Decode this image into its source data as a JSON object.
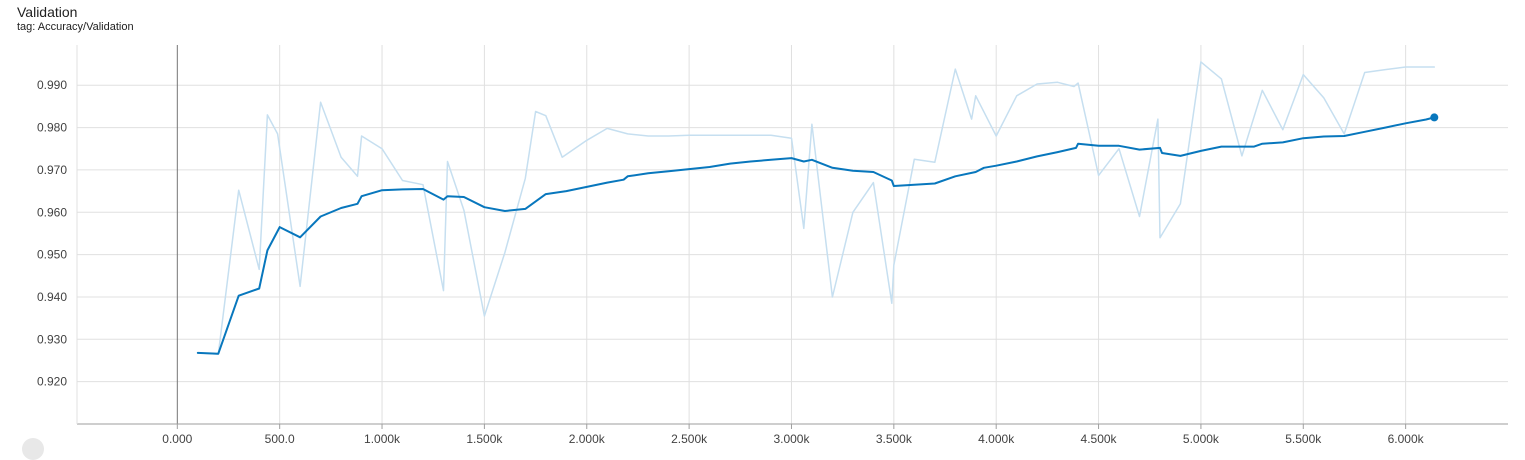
{
  "card": {
    "title": "Validation",
    "tag_line": "tag: Accuracy/Validation"
  },
  "colors": {
    "smoothed": "#0877bd",
    "raw": "#c6dff0",
    "grid": "#e0e0e0",
    "axis": "#9e9e9e",
    "zero_line": "#757575"
  },
  "chart_data": {
    "type": "line",
    "title": "",
    "xlabel": "",
    "ylabel": "",
    "xlim": [
      -490,
      6500
    ],
    "ylim": [
      0.91,
      0.9995
    ],
    "x_ticks": [
      0,
      500,
      1000,
      1500,
      2000,
      2500,
      3000,
      3500,
      4000,
      4500,
      5000,
      5500,
      6000
    ],
    "x_tick_labels": [
      "0.000",
      "500.0",
      "1.000k",
      "1.500k",
      "2.000k",
      "2.500k",
      "3.000k",
      "3.500k",
      "4.000k",
      "4.500k",
      "5.000k",
      "5.500k",
      "6.000k"
    ],
    "y_ticks": [
      0.92,
      0.93,
      0.94,
      0.95,
      0.96,
      0.97,
      0.98,
      0.99
    ],
    "y_tick_labels": [
      "0.920",
      "0.930",
      "0.940",
      "0.950",
      "0.960",
      "0.970",
      "0.980",
      "0.990"
    ],
    "grid": true,
    "legend": "none",
    "series": [
      {
        "role": "raw",
        "x": [
          100,
          200,
          300,
          400,
          440,
          490,
          600,
          700,
          800,
          880,
          900,
          1000,
          1100,
          1200,
          1300,
          1320,
          1400,
          1500,
          1600,
          1700,
          1750,
          1800,
          1880,
          2000,
          2100,
          2200,
          2300,
          2400,
          2500,
          2600,
          2700,
          2800,
          2900,
          3000,
          3060,
          3100,
          3200,
          3300,
          3400,
          3490,
          3500,
          3600,
          3700,
          3800,
          3880,
          3900,
          4000,
          4100,
          4200,
          4300,
          4380,
          4400,
          4500,
          4600,
          4700,
          4790,
          4800,
          4900,
          5000,
          5100,
          5200,
          5300,
          5400,
          5500,
          5600,
          5700,
          5800,
          5900,
          6000,
          6100,
          6140
        ],
        "y": [
          0.9268,
          0.9265,
          0.9652,
          0.9465,
          0.983,
          0.9785,
          0.9425,
          0.986,
          0.973,
          0.9685,
          0.978,
          0.975,
          0.9675,
          0.9665,
          0.9415,
          0.972,
          0.9605,
          0.9355,
          0.9505,
          0.968,
          0.9838,
          0.9828,
          0.973,
          0.977,
          0.9798,
          0.9785,
          0.978,
          0.978,
          0.9782,
          0.9782,
          0.9782,
          0.9782,
          0.9782,
          0.9775,
          0.9562,
          0.9808,
          0.94,
          0.96,
          0.967,
          0.9385,
          0.9475,
          0.9725,
          0.9718,
          0.9938,
          0.982,
          0.9875,
          0.978,
          0.9875,
          0.9903,
          0.9907,
          0.9897,
          0.9905,
          0.9687,
          0.975,
          0.959,
          0.982,
          0.954,
          0.962,
          0.9955,
          0.9915,
          0.9733,
          0.9888,
          0.9795,
          0.9925,
          0.987,
          0.9785,
          0.993,
          0.9937,
          0.9943,
          0.9943,
          0.9943
        ]
      },
      {
        "role": "smoothed",
        "x": [
          100,
          200,
          300,
          400,
          440,
          500,
          600,
          700,
          800,
          880,
          900,
          1000,
          1100,
          1200,
          1300,
          1320,
          1400,
          1500,
          1600,
          1700,
          1800,
          1900,
          2000,
          2100,
          2180,
          2200,
          2300,
          2400,
          2500,
          2600,
          2700,
          2800,
          2900,
          3000,
          3060,
          3100,
          3200,
          3300,
          3400,
          3490,
          3500,
          3600,
          3700,
          3800,
          3900,
          3940,
          4000,
          4100,
          4200,
          4300,
          4390,
          4400,
          4500,
          4600,
          4700,
          4800,
          4810,
          4900,
          5000,
          5100,
          5200,
          5260,
          5300,
          5400,
          5500,
          5600,
          5700,
          5800,
          5900,
          6000,
          6100,
          6140
        ],
        "y": [
          0.9268,
          0.9266,
          0.9403,
          0.942,
          0.951,
          0.9565,
          0.9541,
          0.959,
          0.961,
          0.962,
          0.9638,
          0.9652,
          0.9654,
          0.9655,
          0.963,
          0.9638,
          0.9636,
          0.9612,
          0.9603,
          0.9608,
          0.9643,
          0.965,
          0.966,
          0.967,
          0.9677,
          0.9685,
          0.9692,
          0.9697,
          0.9702,
          0.9707,
          0.9715,
          0.972,
          0.9724,
          0.9728,
          0.972,
          0.9724,
          0.9705,
          0.9698,
          0.9695,
          0.9675,
          0.9662,
          0.9665,
          0.9668,
          0.9685,
          0.9695,
          0.9705,
          0.971,
          0.972,
          0.9732,
          0.9742,
          0.9752,
          0.9762,
          0.9757,
          0.9757,
          0.9748,
          0.9752,
          0.974,
          0.9733,
          0.9745,
          0.9755,
          0.9755,
          0.9755,
          0.9762,
          0.9765,
          0.9775,
          0.9779,
          0.978,
          0.979,
          0.98,
          0.981,
          0.9819,
          0.9824
        ]
      }
    ]
  }
}
